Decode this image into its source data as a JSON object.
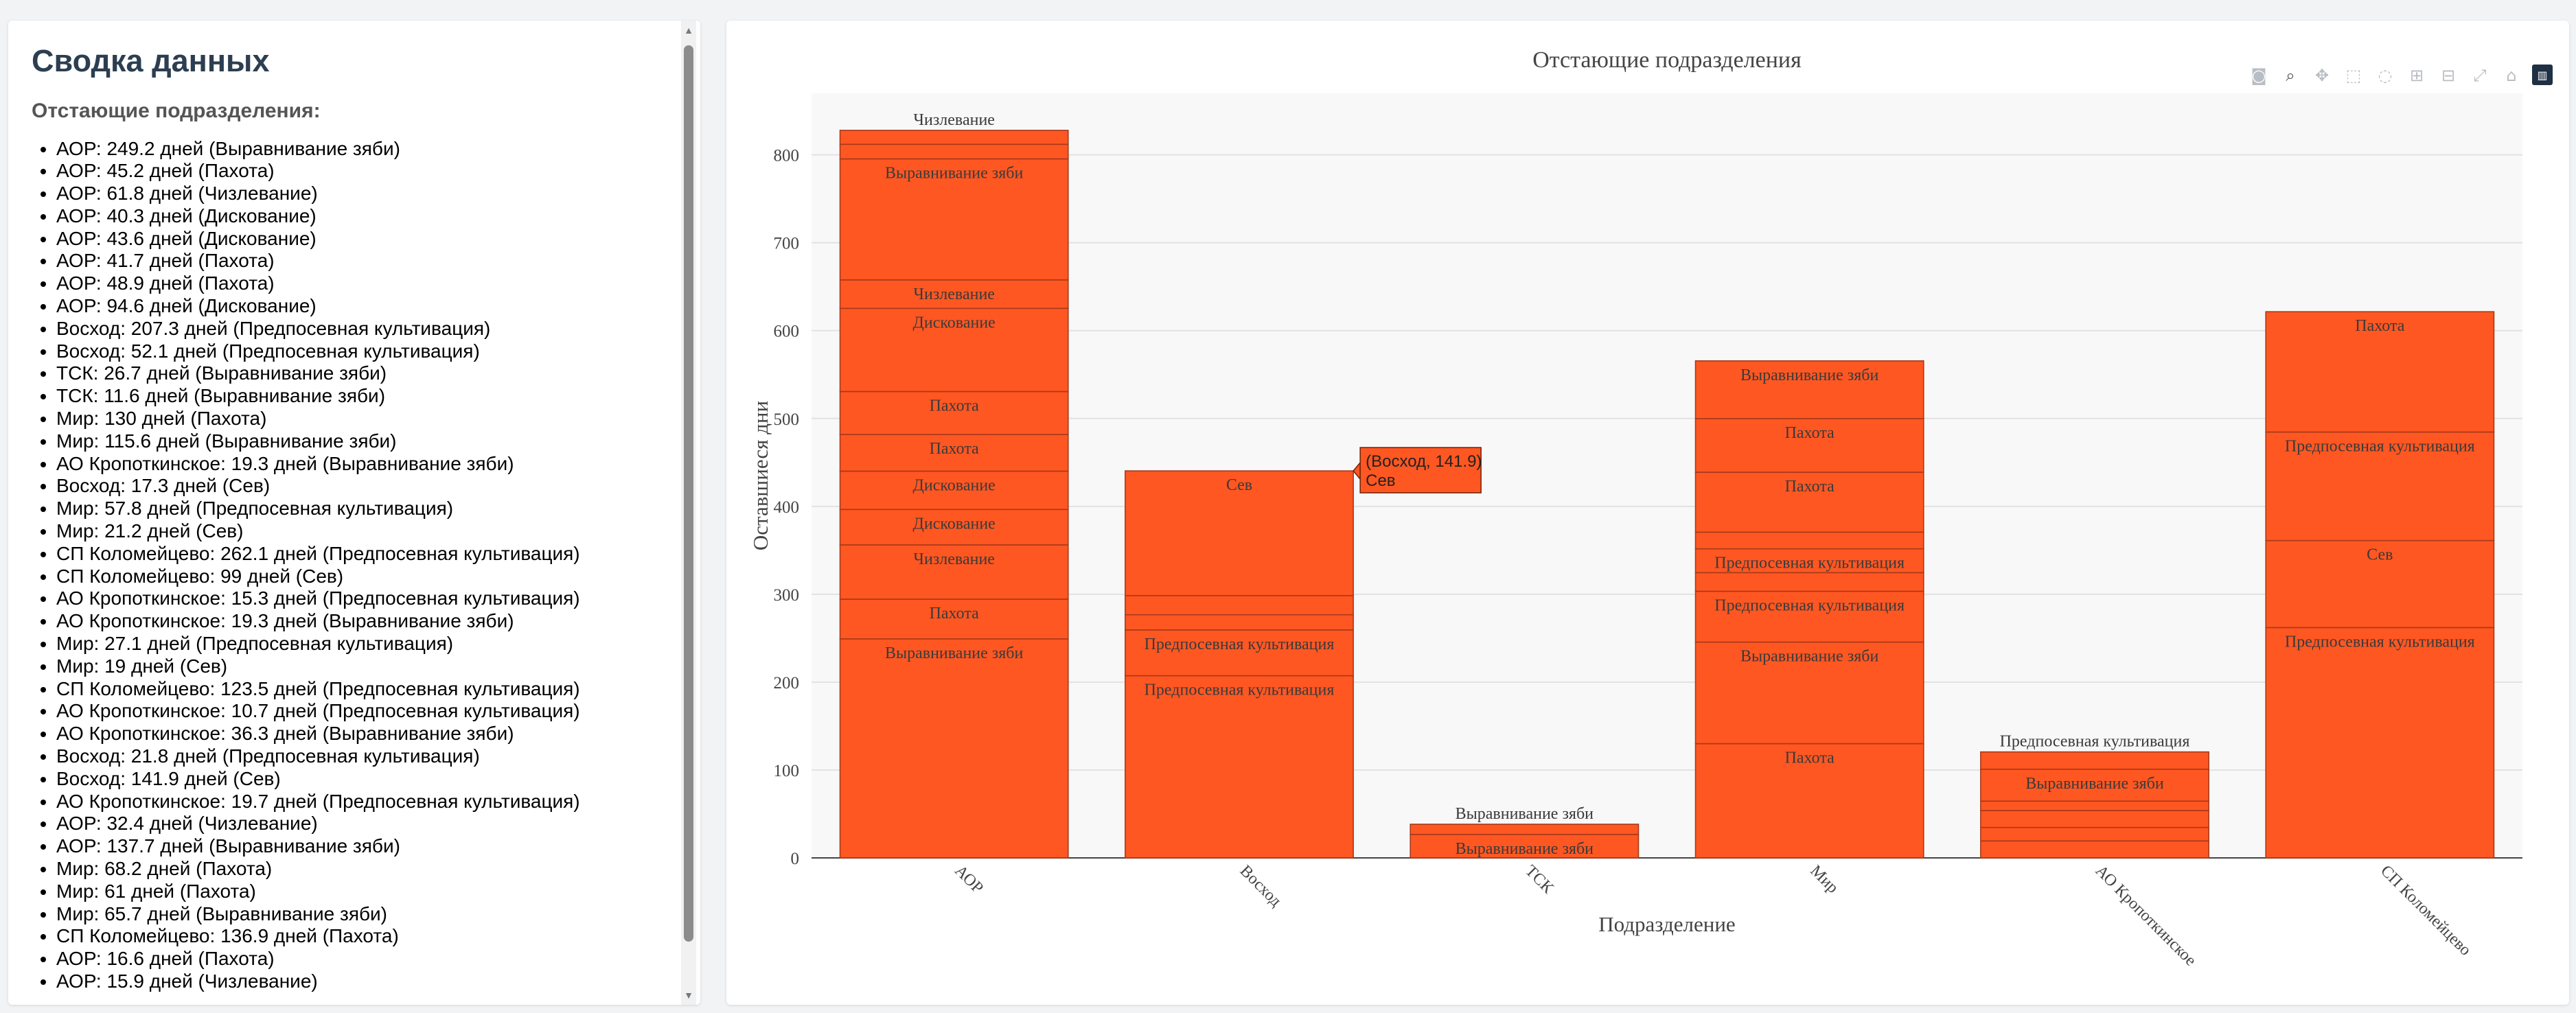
{
  "summary": {
    "title": "Сводка данных",
    "subtitle": "Отстающие подразделения:",
    "entries": [
      "АОР: 249.2 дней (Выравнивание зяби)",
      "АОР: 45.2 дней (Пахота)",
      "АОР: 61.8 дней (Чизлевание)",
      "АОР: 40.3 дней (Дискование)",
      "АОР: 43.6 дней (Дискование)",
      "АОР: 41.7 дней (Пахота)",
      "АОР: 48.9 дней (Пахота)",
      "АОР: 94.6 дней (Дискование)",
      "Восход: 207.3 дней (Предпосевная культивация)",
      "Восход: 52.1 дней (Предпосевная культивация)",
      "ТСК: 26.7 дней (Выравнивание зяби)",
      "ТСК: 11.6 дней (Выравнивание зяби)",
      "Мир: 130 дней (Пахота)",
      "Мир: 115.6 дней (Выравнивание зяби)",
      "АО Кропоткинское: 19.3 дней (Выравнивание зяби)",
      "Восход: 17.3 дней (Сев)",
      "Мир: 57.8 дней (Предпосевная культивация)",
      "Мир: 21.2 дней (Сев)",
      "СП Коломейцево: 262.1 дней (Предпосевная культивация)",
      "СП Коломейцево: 99 дней (Сев)",
      "АО Кропоткинское: 15.3 дней (Предпосевная культивация)",
      "АО Кропоткинское: 19.3 дней (Выравнивание зяби)",
      "Мир: 27.1 дней (Предпосевная культивация)",
      "Мир: 19 дней (Сев)",
      "СП Коломейцево: 123.5 дней (Предпосевная культивация)",
      "АО Кропоткинское: 10.7 дней (Предпосевная культивация)",
      "АО Кропоткинское: 36.3 дней (Выравнивание зяби)",
      "Восход: 21.8 дней (Предпосевная культивация)",
      "Восход: 141.9 дней (Сев)",
      "АО Кропоткинское: 19.7 дней (Предпосевная культивация)",
      "АОР: 32.4 дней (Чизлевание)",
      "АОР: 137.7 дней (Выравнивание зяби)",
      "Мир: 68.2 дней (Пахота)",
      "Мир: 61 дней (Пахота)",
      "Мир: 65.7 дней (Выравнивание зяби)",
      "СП Коломейцево: 136.9 дней (Пахота)",
      "АОР: 16.6 дней (Пахота)",
      "АОР: 15.9 дней (Чизлевание)"
    ]
  },
  "modebar": {
    "icons": [
      "camera-icon",
      "zoom-icon",
      "pan-icon",
      "box-select-icon",
      "lasso-icon",
      "zoom-in-icon",
      "zoom-out-icon",
      "autoscale-icon",
      "reset-axes-icon",
      "plotly-logo-icon"
    ]
  },
  "tooltip": {
    "line1": "(Восход, 141.9)",
    "line2": "Сев"
  },
  "chart_data": {
    "type": "bar",
    "barmode": "stack",
    "title": "Отстающие подразделения",
    "xlabel": "Подразделение",
    "ylabel": "Оставшиеся дни",
    "ylim": [
      0,
      870
    ],
    "yticks": [
      0,
      100,
      200,
      300,
      400,
      500,
      600,
      700,
      800
    ],
    "grid": true,
    "bar_color": "#ff5722",
    "categories": [
      "АОР",
      "Восход",
      "ТСК",
      "Мир",
      "АО Кропоткинское",
      "СП Коломейцево"
    ],
    "stacks": [
      [
        {
          "value": 249.2,
          "label": "Выравнивание зяби"
        },
        {
          "value": 45.2,
          "label": "Пахота"
        },
        {
          "value": 61.8,
          "label": "Чизлевание"
        },
        {
          "value": 40.3,
          "label": "Дискование"
        },
        {
          "value": 43.6,
          "label": "Дискование"
        },
        {
          "value": 41.7,
          "label": "Пахота"
        },
        {
          "value": 48.9,
          "label": "Пахота"
        },
        {
          "value": 94.6,
          "label": "Дискование"
        },
        {
          "value": 32.4,
          "label": "Чизлевание"
        },
        {
          "value": 137.7,
          "label": "Выравнивание зяби"
        },
        {
          "value": 16.6,
          "label": "Пахота"
        },
        {
          "value": 15.9,
          "label": "Чизлевание"
        }
      ],
      [
        {
          "value": 207.3,
          "label": "Предпосевная культивация"
        },
        {
          "value": 52.1,
          "label": "Предпосевная культивация"
        },
        {
          "value": 17.3,
          "label": "Сев"
        },
        {
          "value": 21.8,
          "label": "Предпосевная культивация"
        },
        {
          "value": 141.9,
          "label": "Сев"
        }
      ],
      [
        {
          "value": 26.7,
          "label": "Выравнивание зяби"
        },
        {
          "value": 11.6,
          "label": "Выравнивание зяби"
        }
      ],
      [
        {
          "value": 130,
          "label": "Пахота"
        },
        {
          "value": 115.6,
          "label": "Выравнивание зяби"
        },
        {
          "value": 57.8,
          "label": "Предпосевная культивация"
        },
        {
          "value": 21.2,
          "label": "Сев"
        },
        {
          "value": 27.1,
          "label": "Предпосевная культивация"
        },
        {
          "value": 19,
          "label": "Сев"
        },
        {
          "value": 68.2,
          "label": "Пахота"
        },
        {
          "value": 61,
          "label": "Пахота"
        },
        {
          "value": 65.7,
          "label": "Выравнивание зяби"
        }
      ],
      [
        {
          "value": 19.3,
          "label": "Выравнивание зяби"
        },
        {
          "value": 15.3,
          "label": "Предпосевная культивация"
        },
        {
          "value": 19.3,
          "label": "Выравнивание зяби"
        },
        {
          "value": 10.7,
          "label": "Предпосевная культивация"
        },
        {
          "value": 36.3,
          "label": "Выравнивание зяби"
        },
        {
          "value": 19.7,
          "label": "Предпосевная культивация"
        }
      ],
      [
        {
          "value": 262.1,
          "label": "Предпосевная культивация"
        },
        {
          "value": 99,
          "label": "Сев"
        },
        {
          "value": 123.5,
          "label": "Предпосевная культивация"
        },
        {
          "value": 136.9,
          "label": "Пахота"
        }
      ]
    ]
  }
}
